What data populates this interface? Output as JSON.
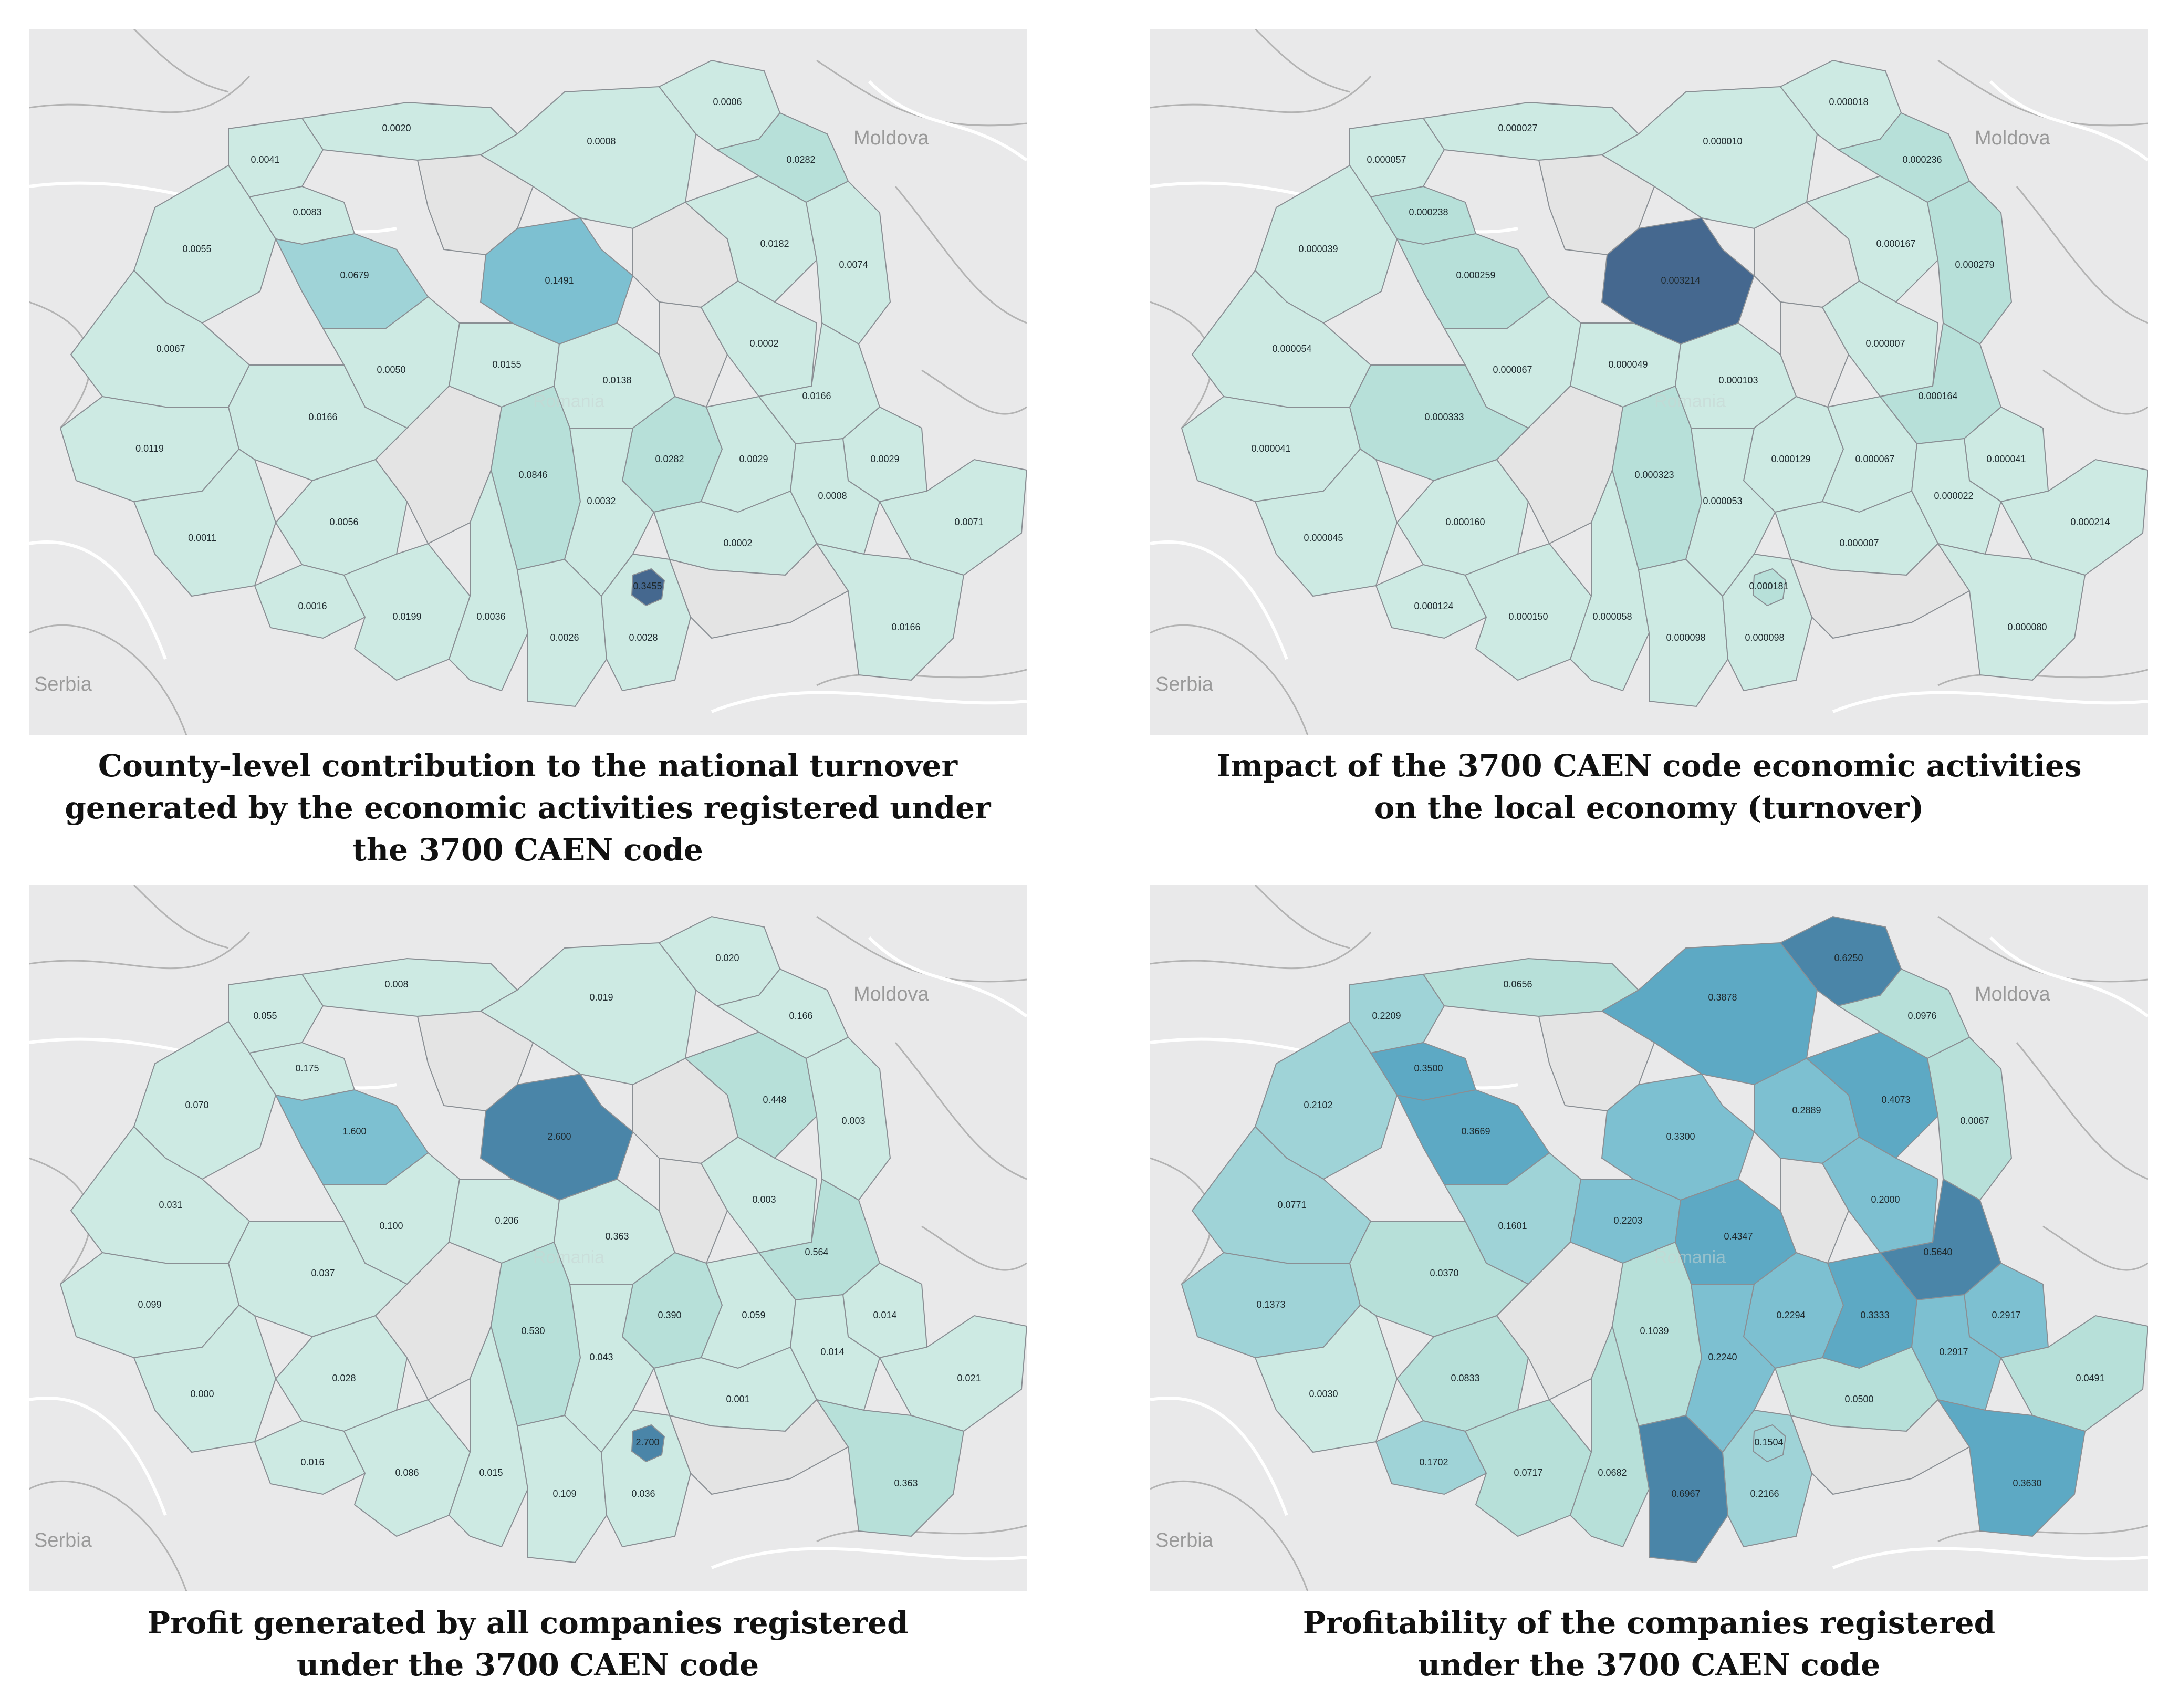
{
  "background_labels": {
    "left": "Serbia",
    "right": "Moldova",
    "center": "Romania"
  },
  "colors": {
    "background": "#e9e9ea",
    "no_data": "#e4e4e4",
    "scale": [
      "#cdeae3",
      "#b7e0d9",
      "#9fd3d7",
      "#7dc0d1",
      "#5da9c4",
      "#4a85a8",
      "#45688f"
    ]
  },
  "maps": [
    {
      "caption": [
        "County-level contribution to the national turnover",
        "generated by the economic activities registered under",
        "the 3700 CAEN code"
      ],
      "counties": {
        "satu-mare": {
          "label": "0.0041",
          "level": 0
        },
        "maramures": {
          "label": "0.0020",
          "level": 0
        },
        "suceava": {
          "label": "0.0008",
          "level": 0
        },
        "botosani": {
          "label": "0.0006",
          "level": 0
        },
        "bihor": {
          "label": "0.0055",
          "level": 0
        },
        "salaj": {
          "label": "0.0083",
          "level": 0
        },
        "cluj": {
          "label": "0.0679",
          "level": 2
        },
        "bistrita": {
          "label": "",
          "level": -1
        },
        "mures": {
          "label": "0.1491",
          "level": 3
        },
        "harghita": {
          "label": "",
          "level": -1
        },
        "neamt": {
          "label": "0.0182",
          "level": 0
        },
        "iasi": {
          "label": "0.0282",
          "level": 1
        },
        "vaslui": {
          "label": "0.0074",
          "level": 0
        },
        "arad": {
          "label": "0.0067",
          "level": 0
        },
        "alba": {
          "label": "0.0050",
          "level": 0
        },
        "sibiu": {
          "label": "0.0155",
          "level": 0
        },
        "covasna": {
          "label": "",
          "level": -1
        },
        "bacau": {
          "label": "0.0002",
          "level": 0
        },
        "timis": {
          "label": "0.0119",
          "level": 0
        },
        "hunedoara": {
          "label": "0.0166",
          "level": 0
        },
        "brasov": {
          "label": "0.0138",
          "level": 0
        },
        "vrancea": {
          "label": "0.0166",
          "level": 0
        },
        "galati": {
          "label": "0.0029",
          "level": 0
        },
        "caras": {
          "label": "0.0011",
          "level": 0
        },
        "gorj": {
          "label": "0.0056",
          "level": 0
        },
        "valcea": {
          "label": "",
          "level": -1
        },
        "arges": {
          "label": "0.0846",
          "level": 1
        },
        "prahova": {
          "label": "0.0282",
          "level": 1
        },
        "buzau": {
          "label": "0.0029",
          "level": 0
        },
        "braila": {
          "label": "0.0008",
          "level": 0
        },
        "tulcea": {
          "label": "0.0071",
          "level": 0
        },
        "mehedinti": {
          "label": "0.0016",
          "level": 0
        },
        "dolj": {
          "label": "0.0199",
          "level": 0
        },
        "olt": {
          "label": "0.0036",
          "level": 0
        },
        "teleorman": {
          "label": "0.0026",
          "level": 0
        },
        "dambovita": {
          "label": "0.0032",
          "level": 0
        },
        "ialomita": {
          "label": "0.0002",
          "level": 0
        },
        "giurgiu": {
          "label": "0.0028",
          "level": 0
        },
        "calarasi": {
          "label": "",
          "level": -1
        },
        "constanta": {
          "label": "0.0166",
          "level": 0
        },
        "bucharest": {
          "label": "0.3455",
          "level": 6
        }
      }
    },
    {
      "caption": [
        "Impact of the 3700 CAEN code economic activities",
        "on the local economy (turnover)"
      ],
      "counties": {
        "satu-mare": {
          "label": "0.000057",
          "level": 0
        },
        "maramures": {
          "label": "0.000027",
          "level": 0
        },
        "suceava": {
          "label": "0.000010",
          "level": 0
        },
        "botosani": {
          "label": "0.000018",
          "level": 0
        },
        "bihor": {
          "label": "0.000039",
          "level": 0
        },
        "salaj": {
          "label": "0.000238",
          "level": 1
        },
        "cluj": {
          "label": "0.000259",
          "level": 1
        },
        "bistrita": {
          "label": "",
          "level": -1
        },
        "mures": {
          "label": "0.003214",
          "level": 6
        },
        "harghita": {
          "label": "",
          "level": -1
        },
        "neamt": {
          "label": "0.000167",
          "level": 0
        },
        "iasi": {
          "label": "0.000236",
          "level": 1
        },
        "vaslui": {
          "label": "0.000279",
          "level": 1
        },
        "arad": {
          "label": "0.000054",
          "level": 0
        },
        "alba": {
          "label": "0.000067",
          "level": 0
        },
        "sibiu": {
          "label": "0.000049",
          "level": 0
        },
        "covasna": {
          "label": "",
          "level": -1
        },
        "bacau": {
          "label": "0.000007",
          "level": 0
        },
        "timis": {
          "label": "0.000041",
          "level": 0
        },
        "hunedoara": {
          "label": "0.000333",
          "level": 1
        },
        "brasov": {
          "label": "0.000103",
          "level": 0
        },
        "vrancea": {
          "label": "0.000164",
          "level": 1
        },
        "galati": {
          "label": "0.000041",
          "level": 0
        },
        "caras": {
          "label": "0.000045",
          "level": 0
        },
        "gorj": {
          "label": "0.000160",
          "level": 0
        },
        "valcea": {
          "label": "",
          "level": -1
        },
        "arges": {
          "label": "0.000323",
          "level": 1
        },
        "prahova": {
          "label": "0.000129",
          "level": 0
        },
        "buzau": {
          "label": "0.000067",
          "level": 0
        },
        "braila": {
          "label": "0.000022",
          "level": 0
        },
        "tulcea": {
          "label": "0.000214",
          "level": 0
        },
        "mehedinti": {
          "label": "0.000124",
          "level": 0
        },
        "dolj": {
          "label": "0.000150",
          "level": 0
        },
        "olt": {
          "label": "0.000058",
          "level": 0
        },
        "teleorman": {
          "label": "0.000098",
          "level": 0
        },
        "dambovita": {
          "label": "0.000053",
          "level": 0
        },
        "ialomita": {
          "label": "0.000007",
          "level": 0
        },
        "giurgiu": {
          "label": "0.000098",
          "level": 0
        },
        "calarasi": {
          "label": "",
          "level": -1
        },
        "constanta": {
          "label": "0.000080",
          "level": 0
        },
        "bucharest": {
          "label": "0.000181",
          "level": 1
        }
      }
    },
    {
      "caption": [
        "Profit generated by all companies registered",
        "under the 3700 CAEN code"
      ],
      "counties": {
        "satu-mare": {
          "label": "0.055",
          "level": 0
        },
        "maramures": {
          "label": "0.008",
          "level": 0
        },
        "suceava": {
          "label": "0.019",
          "level": 0
        },
        "botosani": {
          "label": "0.020",
          "level": 0
        },
        "bihor": {
          "label": "0.070",
          "level": 0
        },
        "salaj": {
          "label": "0.175",
          "level": 0
        },
        "cluj": {
          "label": "1.600",
          "level": 3
        },
        "bistrita": {
          "label": "",
          "level": -1
        },
        "mures": {
          "label": "2.600",
          "level": 5
        },
        "harghita": {
          "label": "",
          "level": -1
        },
        "neamt": {
          "label": "0.448",
          "level": 1
        },
        "iasi": {
          "label": "0.166",
          "level": 0
        },
        "vaslui": {
          "label": "0.003",
          "level": 0
        },
        "arad": {
          "label": "0.031",
          "level": 0
        },
        "alba": {
          "label": "0.100",
          "level": 0
        },
        "sibiu": {
          "label": "0.206",
          "level": 0
        },
        "covasna": {
          "label": "",
          "level": -1
        },
        "bacau": {
          "label": "0.003",
          "level": 0
        },
        "timis": {
          "label": "0.099",
          "level": 0
        },
        "hunedoara": {
          "label": "0.037",
          "level": 0
        },
        "brasov": {
          "label": "0.363",
          "level": 0
        },
        "vrancea": {
          "label": "0.564",
          "level": 1
        },
        "galati": {
          "label": "0.014",
          "level": 0
        },
        "caras": {
          "label": "0.000",
          "level": 0
        },
        "gorj": {
          "label": "0.028",
          "level": 0
        },
        "valcea": {
          "label": "",
          "level": -1
        },
        "arges": {
          "label": "0.530",
          "level": 1
        },
        "prahova": {
          "label": "0.390",
          "level": 1
        },
        "buzau": {
          "label": "0.059",
          "level": 0
        },
        "braila": {
          "label": "0.014",
          "level": 0
        },
        "tulcea": {
          "label": "0.021",
          "level": 0
        },
        "mehedinti": {
          "label": "0.016",
          "level": 0
        },
        "dolj": {
          "label": "0.086",
          "level": 0
        },
        "olt": {
          "label": "0.015",
          "level": 0
        },
        "teleorman": {
          "label": "0.109",
          "level": 0
        },
        "dambovita": {
          "label": "0.043",
          "level": 0
        },
        "ialomita": {
          "label": "0.001",
          "level": 0
        },
        "giurgiu": {
          "label": "0.036",
          "level": 0
        },
        "calarasi": {
          "label": "",
          "level": -1
        },
        "constanta": {
          "label": "0.363",
          "level": 1
        },
        "bucharest": {
          "label": "2.700",
          "level": 5
        }
      }
    },
    {
      "caption": [
        "Profitability of the companies registered",
        "under the 3700 CAEN code"
      ],
      "counties": {
        "satu-mare": {
          "label": "0.2209",
          "level": 2
        },
        "maramures": {
          "label": "0.0656",
          "level": 1
        },
        "suceava": {
          "label": "0.3878",
          "level": 4
        },
        "botosani": {
          "label": "0.6250",
          "level": 5
        },
        "bihor": {
          "label": "0.2102",
          "level": 2
        },
        "salaj": {
          "label": "0.3500",
          "level": 4
        },
        "cluj": {
          "label": "0.3669",
          "level": 4
        },
        "bistrita": {
          "label": "",
          "level": -1
        },
        "mures": {
          "label": "0.3300",
          "level": 3
        },
        "harghita": {
          "label": "0.2889",
          "level": 3
        },
        "neamt": {
          "label": "0.4073",
          "level": 4
        },
        "iasi": {
          "label": "0.0976",
          "level": 1
        },
        "vaslui": {
          "label": "0.0067",
          "level": 1
        },
        "arad": {
          "label": "0.0771",
          "level": 2
        },
        "alba": {
          "label": "0.1601",
          "level": 2
        },
        "sibiu": {
          "label": "0.2203",
          "level": 3
        },
        "covasna": {
          "label": "",
          "level": -1
        },
        "bacau": {
          "label": "0.2000",
          "level": 3
        },
        "timis": {
          "label": "0.1373",
          "level": 2
        },
        "hunedoara": {
          "label": "0.0370",
          "level": 1
        },
        "brasov": {
          "label": "0.4347",
          "level": 4
        },
        "vrancea": {
          "label": "0.5640",
          "level": 5
        },
        "galati": {
          "label": "0.2917",
          "level": 3
        },
        "caras": {
          "label": "0.0030",
          "level": 0
        },
        "gorj": {
          "label": "0.0833",
          "level": 1
        },
        "valcea": {
          "label": "",
          "level": -1
        },
        "arges": {
          "label": "0.1039",
          "level": 1
        },
        "prahova": {
          "label": "0.2294",
          "level": 3
        },
        "buzau": {
          "label": "0.3333",
          "level": 4
        },
        "braila": {
          "label": "0.2917",
          "level": 3
        },
        "tulcea": {
          "label": "0.0491",
          "level": 1
        },
        "mehedinti": {
          "label": "0.1702",
          "level": 2
        },
        "dolj": {
          "label": "0.0717",
          "level": 1
        },
        "olt": {
          "label": "0.0682",
          "level": 1
        },
        "teleorman": {
          "label": "0.6967",
          "level": 5
        },
        "dambovita": {
          "label": "0.2240",
          "level": 3
        },
        "ialomita": {
          "label": "0.0500",
          "level": 1
        },
        "giurgiu": {
          "label": "0.2166",
          "level": 2
        },
        "calarasi": {
          "label": "",
          "level": -1
        },
        "constanta": {
          "label": "0.3630",
          "level": 4
        },
        "bucharest": {
          "label": "0.1504",
          "level": 2
        }
      }
    }
  ]
}
